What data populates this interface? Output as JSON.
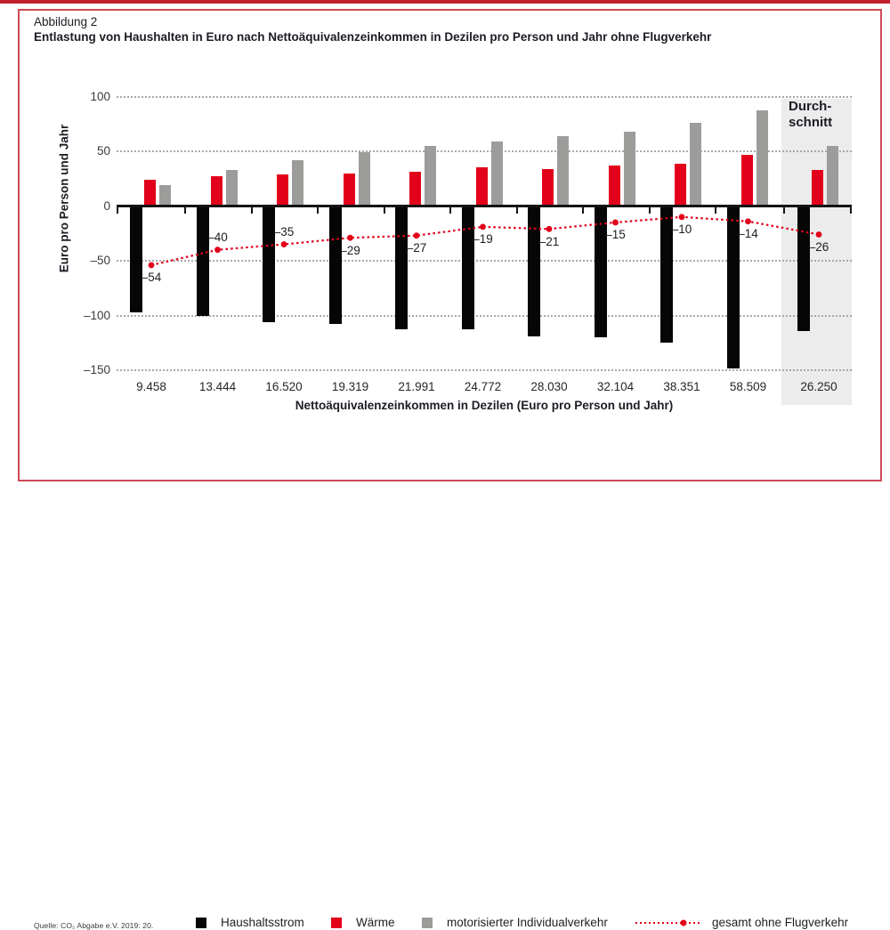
{
  "page": {
    "top_strip_color": "#c0202c",
    "frame_border_color": "#cf4856",
    "background": "#ffffff"
  },
  "header": {
    "label": "Abbildung 2",
    "title": "Entlastung von Haushalten in Euro nach Nettoäquivalenzeinkommen in Dezilen pro Person und Jahr ohne Flugverkehr"
  },
  "chart_data": {
    "type": "bar",
    "title": "Entlastung von Haushalten in Euro nach Nettoäquivalenzeinkommen in Dezilen pro Person und Jahr ohne Flugverkehr",
    "categories": [
      "9.458",
      "13.444",
      "16.520",
      "19.319",
      "21.991",
      "24.772",
      "28.030",
      "32.104",
      "38.351",
      "58.509",
      "26.250"
    ],
    "series": [
      {
        "name": "Haushaltsstrom",
        "color": "#060606",
        "values": [
          -97,
          -100,
          -106,
          -108,
          -113,
          -113,
          -119,
          -120,
          -125,
          -148,
          -114
        ]
      },
      {
        "name": "Wärme",
        "color": "#e2001a",
        "values": [
          24,
          27,
          29,
          30,
          31,
          35,
          34,
          37,
          39,
          47,
          33
        ]
      },
      {
        "name": "motorisierter Individualverkehr",
        "color": "#9c9c9b",
        "values": [
          19,
          33,
          42,
          49,
          55,
          59,
          64,
          68,
          76,
          87,
          55
        ]
      }
    ],
    "line_series": {
      "name": "gesamt ohne Flugverkehr",
      "color": "#e2001a",
      "values": [
        -54,
        -40,
        -35,
        -29,
        -27,
        -19,
        -21,
        -15,
        -10,
        -14,
        -26
      ],
      "labels": [
        "–54",
        "–40",
        "–35",
        "–29",
        "–27",
        "–19",
        "–21",
        "–15",
        "–10",
        "–14",
        "–26"
      ],
      "label_above": [
        false,
        true,
        true,
        false,
        false,
        false,
        false,
        false,
        false,
        false,
        false
      ]
    },
    "highlight": {
      "index": 10,
      "label": "Durch-\nschnitt",
      "band_color": "#ececec"
    },
    "xlabel": "Nettoäquivalenzeinkommen in Dezilen (Euro pro Person und Jahr)",
    "ylabel": "Euro pro Person und Jahr",
    "ylim": [
      -150,
      100
    ],
    "yticks": {
      "values": [
        100,
        50,
        0,
        -50,
        -100,
        -150
      ],
      "labels": [
        "100",
        "50",
        "0",
        "–50",
        "–100",
        "–150"
      ]
    },
    "grid": "horizontal dotted",
    "legend_position": "bottom"
  },
  "legend": {
    "items": [
      {
        "label": "Haushaltsstrom",
        "swatch": "square",
        "color": "#060606"
      },
      {
        "label": "Wärme",
        "swatch": "square",
        "color": "#e2001a"
      },
      {
        "label": "motorisierter Individualverkehr",
        "swatch": "square",
        "color": "#9c9c9b"
      },
      {
        "label": "gesamt ohne Flugverkehr",
        "swatch": "dotted-line",
        "color": "#e2001a"
      }
    ]
  },
  "source": "Quelle: CO₂ Abgabe e.V. 2019: 20."
}
